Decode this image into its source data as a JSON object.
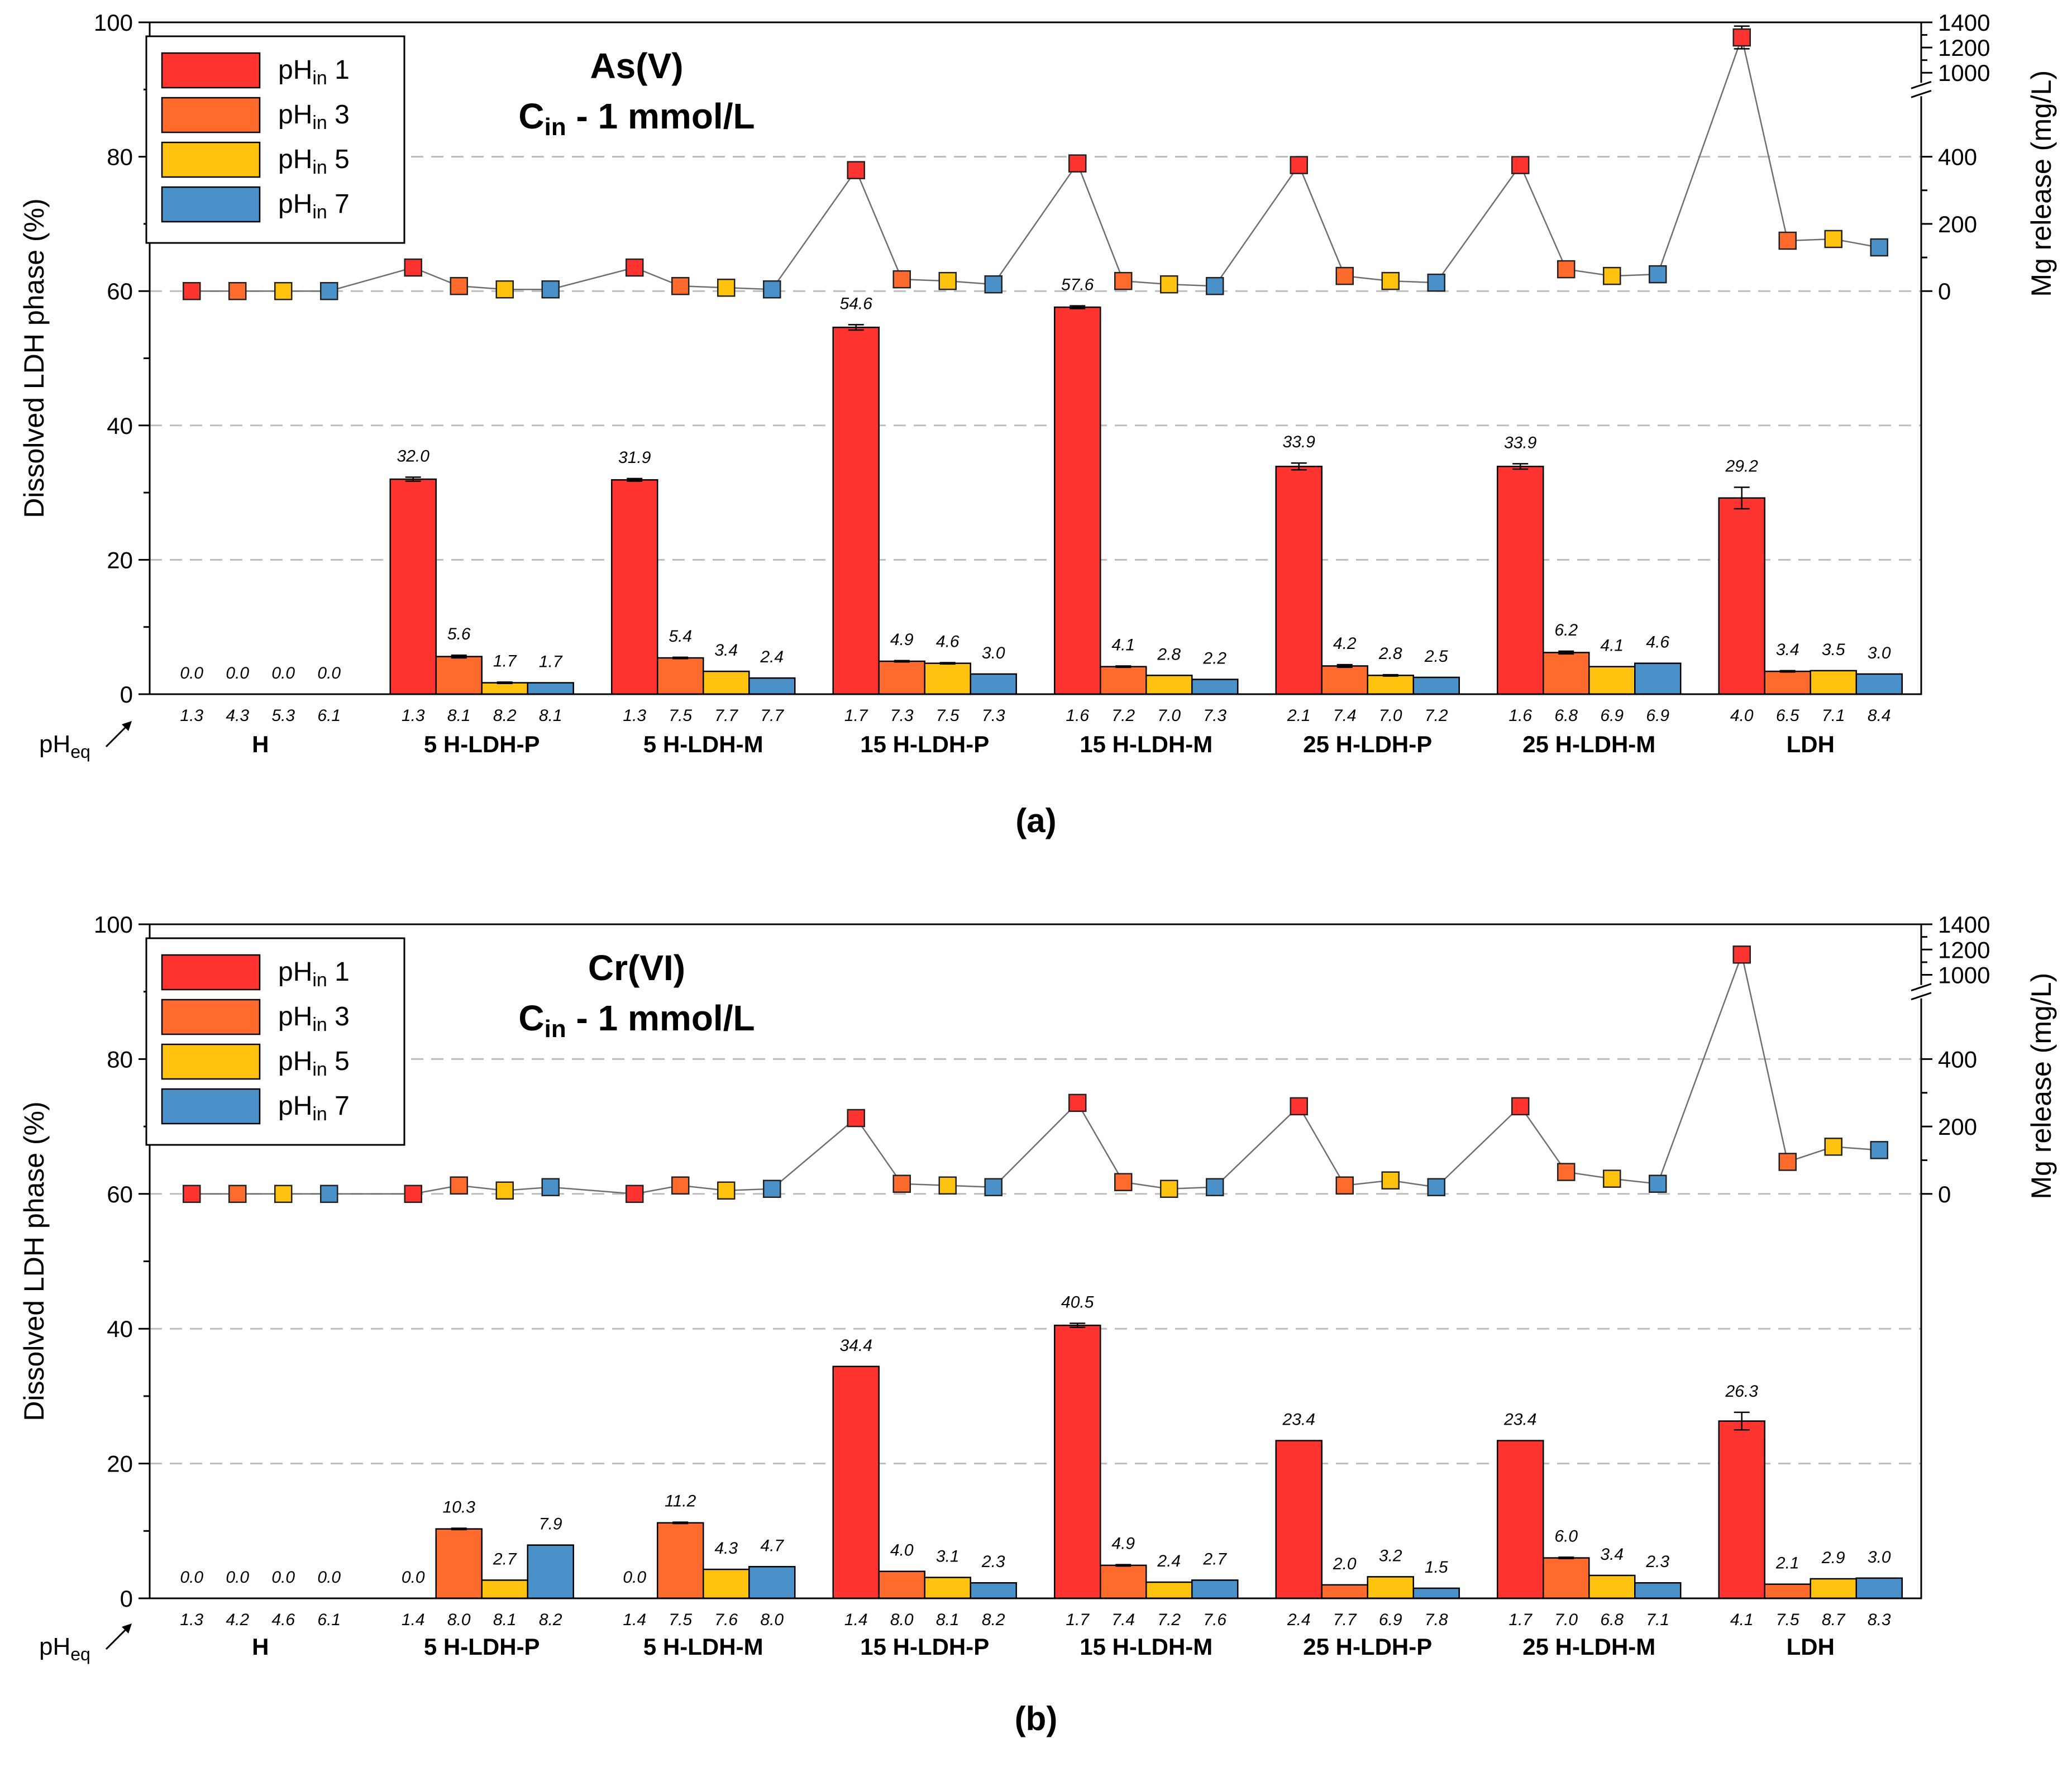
{
  "chart_data": [
    {
      "type": "bar",
      "panel_label": "(a)",
      "annotation_line1": "As(V)",
      "annotation_line2_main": "C",
      "annotation_line2_sub": "in",
      "annotation_line2_rest": " - 1 mmol/L",
      "ylabel": "Dissolved LDH phase (%)",
      "y2label": "Mg release (mg/L)",
      "ylim": [
        0,
        100
      ],
      "yticks": [
        "0",
        "20",
        "40",
        "60",
        "80",
        "100"
      ],
      "y2_lower_ticks": [
        "0",
        "200",
        "400"
      ],
      "y2_upper_ticks": [
        "1000",
        "1200",
        "1400"
      ],
      "grid": "dashed horizontal at 20, 40, 60, 80",
      "legend_position": "top-left",
      "pheq_label_main": "pH",
      "pheq_label_sub": "eq",
      "categories": [
        "H",
        "5 H-LDH-P",
        "5 H-LDH-M",
        "15 H-LDH-P",
        "15 H-LDH-M",
        "25 H-LDH-P",
        "25 H-LDH-M",
        "LDH"
      ],
      "series": [
        {
          "name_main": "pH",
          "name_sub": "in",
          "name_rest": " 1",
          "color": "#FF3431",
          "values": [
            0.0,
            32.0,
            31.9,
            54.6,
            57.6,
            33.9,
            33.9,
            29.2
          ],
          "labels": [
            "0.0",
            "32.0",
            "31.9",
            "54.6",
            "57.6",
            "33.9",
            "33.9",
            "29.2"
          ],
          "errors": [
            0,
            0.3,
            0.2,
            0.4,
            0.2,
            0.5,
            0.4,
            1.6
          ],
          "pheq": [
            "1.3",
            "1.3",
            "1.3",
            "1.7",
            "1.6",
            "2.1",
            "1.6",
            "4.0"
          ],
          "mg_release": [
            0,
            70,
            70,
            360,
            380,
            375,
            375,
            1280
          ],
          "mg_error": [
            0,
            0,
            0,
            0,
            0,
            0,
            0,
            90
          ]
        },
        {
          "name_main": "pH",
          "name_sub": "in",
          "name_rest": " 3",
          "color": "#FF6B2C",
          "values": [
            0.0,
            5.6,
            5.4,
            4.9,
            4.1,
            4.2,
            6.2,
            3.4
          ],
          "labels": [
            "0.0",
            "5.6",
            "5.4",
            "4.9",
            "4.1",
            "4.2",
            "6.2",
            "3.4"
          ],
          "errors": [
            0,
            0.2,
            0.1,
            0.1,
            0.1,
            0.2,
            0.2,
            0.1
          ],
          "pheq": [
            "4.3",
            "8.1",
            "7.5",
            "7.3",
            "7.2",
            "7.4",
            "6.8",
            "6.5"
          ],
          "mg_release": [
            0,
            15,
            15,
            35,
            30,
            45,
            65,
            150
          ],
          "mg_error": [
            0,
            0,
            0,
            0,
            0,
            0,
            0,
            0
          ]
        },
        {
          "name_main": "pH",
          "name_sub": "in",
          "name_rest": " 5",
          "color": "#FFC20E",
          "values": [
            0.0,
            1.7,
            3.4,
            4.6,
            2.8,
            2.8,
            4.1,
            3.5
          ],
          "labels": [
            "0.0",
            "1.7",
            "3.4",
            "4.6",
            "2.8",
            "2.8",
            "4.1",
            "3.5"
          ],
          "errors": [
            0,
            0.1,
            0,
            0.1,
            0,
            0.1,
            0,
            0
          ],
          "pheq": [
            "5.3",
            "8.2",
            "7.7",
            "7.5",
            "7.0",
            "7.0",
            "6.9",
            "7.1"
          ],
          "mg_release": [
            0,
            5,
            10,
            30,
            20,
            30,
            45,
            155
          ],
          "mg_error": [
            0,
            0,
            0,
            0,
            0,
            0,
            0,
            0
          ]
        },
        {
          "name_main": "pH",
          "name_sub": "in",
          "name_rest": " 7",
          "color": "#4A90C9",
          "values": [
            0.0,
            1.7,
            2.4,
            3.0,
            2.2,
            2.5,
            4.6,
            3.0
          ],
          "labels": [
            "0.0",
            "1.7",
            "2.4",
            "3.0",
            "2.2",
            "2.5",
            "4.6",
            "3.0"
          ],
          "errors": [
            0,
            0,
            0,
            0,
            0,
            0,
            0,
            0
          ],
          "pheq": [
            "6.1",
            "8.1",
            "7.7",
            "7.3",
            "7.3",
            "7.2",
            "6.9",
            "8.4"
          ],
          "mg_release": [
            0,
            5,
            5,
            20,
            15,
            25,
            50,
            130
          ],
          "mg_error": [
            0,
            0,
            0,
            0,
            0,
            0,
            0,
            0
          ]
        }
      ]
    },
    {
      "type": "bar",
      "panel_label": "(b)",
      "annotation_line1": "Cr(VI)",
      "annotation_line2_main": "C",
      "annotation_line2_sub": "in",
      "annotation_line2_rest": " - 1 mmol/L",
      "ylabel": "Dissolved LDH phase (%)",
      "y2label": "Mg release (mg/L)",
      "ylim": [
        0,
        100
      ],
      "yticks": [
        "0",
        "20",
        "40",
        "60",
        "80",
        "100"
      ],
      "y2_lower_ticks": [
        "0",
        "200",
        "400"
      ],
      "y2_upper_ticks": [
        "1000",
        "1200",
        "1400"
      ],
      "grid": "dashed horizontal at 20, 40, 60, 80",
      "legend_position": "top-left",
      "pheq_label_main": "pH",
      "pheq_label_sub": "eq",
      "categories": [
        "H",
        "5 H-LDH-P",
        "5 H-LDH-M",
        "15 H-LDH-P",
        "15 H-LDH-M",
        "25 H-LDH-P",
        "25 H-LDH-M",
        "LDH"
      ],
      "series": [
        {
          "name_main": "pH",
          "name_sub": "in",
          "name_rest": " 1",
          "color": "#FF3431",
          "values": [
            0.0,
            0.0,
            0.0,
            34.4,
            40.5,
            23.4,
            23.4,
            26.3
          ],
          "labels": [
            "0.0",
            "0.0",
            "0.0",
            "34.4",
            "40.5",
            "23.4",
            "23.4",
            "26.3"
          ],
          "errors": [
            0,
            0,
            0,
            0,
            0.3,
            0,
            0,
            1.3
          ],
          "pheq": [
            "1.3",
            "1.4",
            "1.4",
            "1.4",
            "1.7",
            "2.4",
            "1.7",
            "4.1"
          ],
          "mg_release": [
            0,
            0,
            0,
            225,
            270,
            260,
            260,
            1160
          ],
          "mg_error": [
            0,
            0,
            0,
            0,
            0,
            0,
            0,
            0
          ]
        },
        {
          "name_main": "pH",
          "name_sub": "in",
          "name_rest": " 3",
          "color": "#FF6B2C",
          "values": [
            0.0,
            10.3,
            11.2,
            4.0,
            4.9,
            2.0,
            6.0,
            2.1
          ],
          "labels": [
            "0.0",
            "10.3",
            "11.2",
            "4.0",
            "4.9",
            "2.0",
            "6.0",
            "2.1"
          ],
          "errors": [
            0,
            0.1,
            0.1,
            0,
            0.1,
            0,
            0.1,
            0
          ],
          "pheq": [
            "4.2",
            "8.0",
            "7.5",
            "8.0",
            "7.4",
            "7.7",
            "7.0",
            "7.5"
          ],
          "mg_release": [
            0,
            25,
            25,
            30,
            35,
            25,
            65,
            95
          ],
          "mg_error": [
            0,
            0,
            0,
            0,
            0,
            0,
            0,
            0
          ]
        },
        {
          "name_main": "pH",
          "name_sub": "in",
          "name_rest": " 5",
          "color": "#FFC20E",
          "values": [
            0.0,
            2.7,
            4.3,
            3.1,
            2.4,
            3.2,
            3.4,
            2.9
          ],
          "labels": [
            "0.0",
            "2.7",
            "4.3",
            "3.1",
            "2.4",
            "3.2",
            "3.4",
            "2.9"
          ],
          "errors": [
            0,
            0,
            0,
            0,
            0,
            0,
            0,
            0
          ],
          "pheq": [
            "4.6",
            "8.1",
            "7.6",
            "8.1",
            "7.2",
            "6.9",
            "6.8",
            "8.7"
          ],
          "mg_release": [
            0,
            10,
            10,
            25,
            15,
            40,
            45,
            140
          ],
          "mg_error": [
            0,
            0,
            0,
            0,
            0,
            0,
            0,
            0
          ]
        },
        {
          "name_main": "pH",
          "name_sub": "in",
          "name_rest": " 7",
          "color": "#4A90C9",
          "values": [
            0.0,
            7.9,
            4.7,
            2.3,
            2.7,
            1.5,
            2.3,
            3.0
          ],
          "labels": [
            "0.0",
            "7.9",
            "4.7",
            "2.3",
            "2.7",
            "1.5",
            "2.3",
            "3.0"
          ],
          "errors": [
            0,
            0,
            0,
            0,
            0,
            0,
            0,
            0
          ],
          "pheq": [
            "6.1",
            "8.2",
            "8.0",
            "8.2",
            "7.6",
            "7.8",
            "7.1",
            "8.3"
          ],
          "mg_release": [
            0,
            20,
            15,
            20,
            20,
            20,
            30,
            130
          ],
          "mg_error": [
            0,
            0,
            0,
            0,
            0,
            0,
            0,
            0
          ]
        }
      ]
    }
  ]
}
